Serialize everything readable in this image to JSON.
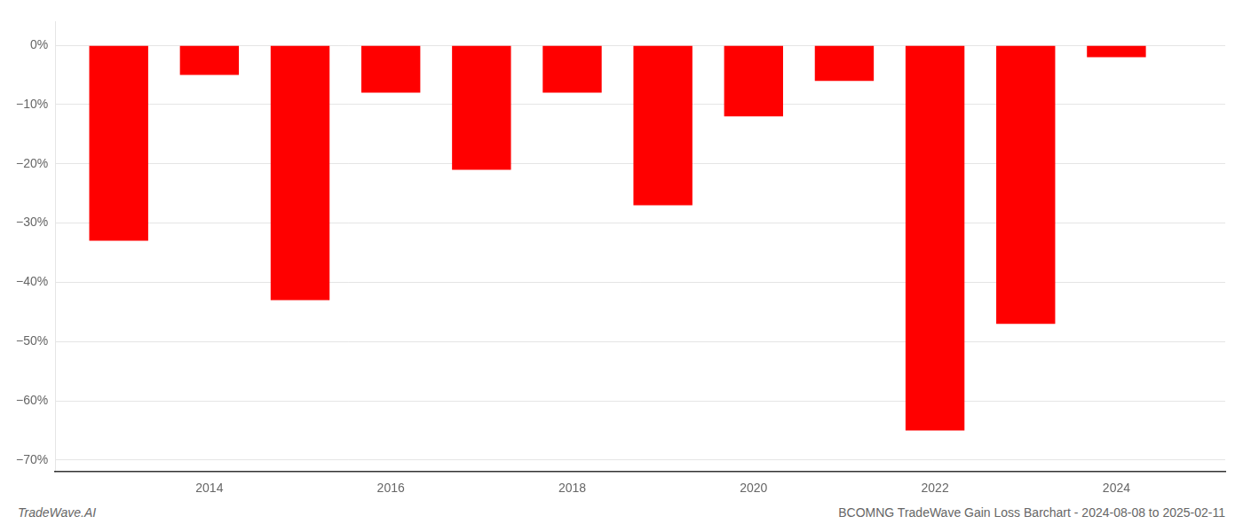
{
  "chart_data": {
    "type": "bar",
    "x": [
      2013,
      2014,
      2015,
      2016,
      2017,
      2018,
      2019,
      2020,
      2021,
      2022,
      2023,
      2024
    ],
    "values": [
      -0.33,
      -0.05,
      -0.43,
      -0.08,
      -0.21,
      -0.08,
      -0.27,
      -0.12,
      -0.06,
      -0.65,
      -0.47,
      -0.02
    ],
    "color": "#ff0000",
    "xlim": [
      2012.3,
      2025.2
    ],
    "xticks": [
      2014,
      2016,
      2018,
      2020,
      2022,
      2024
    ],
    "ylim": [
      -0.72,
      0.04
    ],
    "yticks": [
      {
        "value": 0.0,
        "label": "0%"
      },
      {
        "value": -0.1,
        "label": "−10%"
      },
      {
        "value": -0.2,
        "label": "−20%"
      },
      {
        "value": -0.3,
        "label": "−30%"
      },
      {
        "value": -0.4,
        "label": "−40%"
      },
      {
        "value": -0.5,
        "label": "−50%"
      },
      {
        "value": -0.6,
        "label": "−60%"
      },
      {
        "value": -0.7,
        "label": "−70%"
      }
    ],
    "grid": true,
    "annotations": [
      "TradeWave.AI",
      "BCOMNG TradeWave Gain Loss Barchart - 2024-08-08 to 2025-02-11"
    ]
  }
}
